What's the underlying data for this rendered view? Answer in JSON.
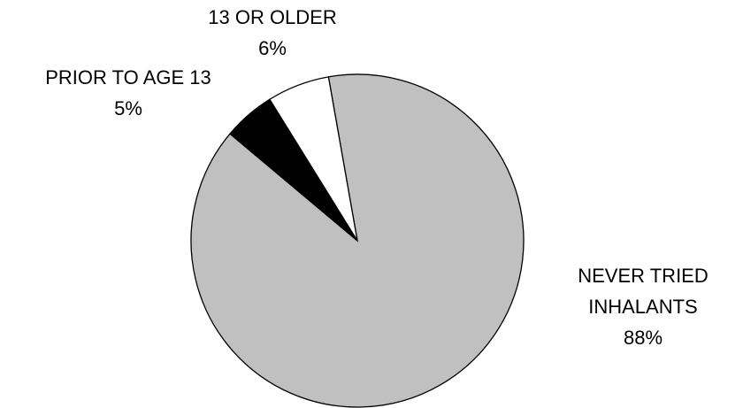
{
  "chart_data": {
    "type": "pie",
    "categories": [
      "NEVER TRIED INHALANTS",
      "PRIOR TO AGE 13",
      "13 OR OLDER"
    ],
    "values": [
      88,
      5,
      6
    ],
    "value_labels": [
      "88%",
      "5%",
      "6%"
    ],
    "colors": [
      "#c0c0c0",
      "#000000",
      "#ffffff"
    ]
  }
}
